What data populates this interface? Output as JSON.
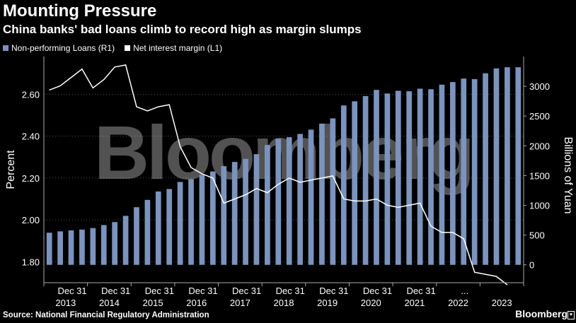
{
  "chart_data": {
    "type": "bar",
    "title": "Mounting Pressure",
    "subtitle": "China banks' bad loans climb to record high as margin slumps",
    "legend": [
      "Non-performing Loans (R1)",
      "Net interest margin (L1)"
    ],
    "left_axis": {
      "label": "Percent",
      "lim": [
        1.7,
        2.78
      ],
      "ticks": [
        "1.80",
        "2.00",
        "2.20",
        "2.40",
        "2.60"
      ]
    },
    "right_axis": {
      "label": "Billions of Yuan",
      "lim": [
        -300,
        3500
      ],
      "ticks": [
        "0",
        "500",
        "1000",
        "1500",
        "2000",
        "2500",
        "3000"
      ]
    },
    "x_tick_labels": [
      "Dec 31",
      "Dec 31",
      "Dec 31",
      "Dec 31",
      "Dec 31",
      "Dec 31",
      "Dec 31",
      "Dec 31",
      "Dec 31",
      "...",
      "Dec 31"
    ],
    "year_labels": [
      "2013",
      "2014",
      "2015",
      "2016",
      "2017",
      "2018",
      "2019",
      "2020",
      "2021",
      "2022",
      "2023"
    ],
    "series": [
      {
        "name": "Non-performing Loans (R1)",
        "kind": "bar",
        "axis": "right",
        "values": [
          540,
          563,
          579,
          592,
          618,
          669,
          719,
          823,
          969,
          1092,
          1233,
          1274,
          1393,
          1441,
          1512,
          1569,
          1658,
          1729,
          1780,
          1860,
          2014,
          2120,
          2145,
          2200,
          2272,
          2373,
          2461,
          2678,
          2748,
          2836,
          2940,
          2879,
          2925,
          2917,
          2960,
          2951,
          3028,
          3071,
          3130,
          3121,
          3219,
          3301,
          3320,
          3320
        ]
      },
      {
        "name": "Net interest margin (L1)",
        "kind": "line",
        "axis": "left",
        "values": [
          2.62,
          2.64,
          2.68,
          2.72,
          2.63,
          2.67,
          2.73,
          2.74,
          2.54,
          2.52,
          2.54,
          2.55,
          2.35,
          2.25,
          2.22,
          2.2,
          2.08,
          2.1,
          2.12,
          2.15,
          2.13,
          2.17,
          2.2,
          2.18,
          2.19,
          2.2,
          2.21,
          2.1,
          2.09,
          2.09,
          2.1,
          2.07,
          2.06,
          2.07,
          2.08,
          1.97,
          1.94,
          1.94,
          1.91,
          1.75,
          1.74,
          1.73,
          1.69
        ]
      }
    ],
    "watermark": "Bloomberg"
  },
  "footer": {
    "source": "Source: National Financial Regulatory Administration",
    "brand": "Bloomberg",
    "brand_icon": "♥"
  }
}
